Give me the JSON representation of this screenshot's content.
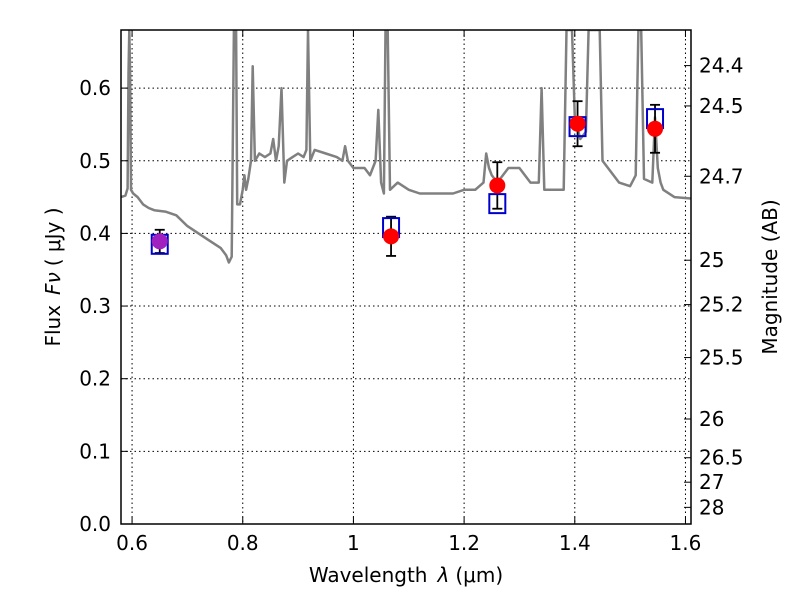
{
  "chart_data": {
    "type": "scatter",
    "title": "",
    "xlabel_text": "Wavelength",
    "xlabel_symbol": "λ",
    "xlabel_unit": "(μm)",
    "ylabel_text": "Flux",
    "ylabel_symbol": "Fν",
    "ylabel_unit": "( μJy )",
    "y2label": "Magnitude (AB)",
    "xlim": [
      0.58,
      1.61
    ],
    "ylim": [
      0.0,
      0.68
    ],
    "grid": true,
    "colors": {
      "model": "#808080",
      "observed": "#ff0000",
      "model_photometry": "#0000cc",
      "errorbar": "#000000",
      "overlap": "#a020c0"
    },
    "x_ticks": [
      "0.6",
      "0.8",
      "1",
      "1.2",
      "1.4",
      "1.6"
    ],
    "x_tick_values": [
      0.6,
      0.8,
      1.0,
      1.2,
      1.4,
      1.6
    ],
    "y_ticks": [
      "0.0",
      "0.1",
      "0.2",
      "0.3",
      "0.4",
      "0.5",
      "0.6"
    ],
    "y_tick_values": [
      0.0,
      0.1,
      0.2,
      0.3,
      0.4,
      0.5,
      0.6
    ],
    "y2_ticks": [
      {
        "label": "24.4",
        "mag": 24.4
      },
      {
        "label": "24.5",
        "mag": 24.5
      },
      {
        "label": "24.7",
        "mag": 24.7
      },
      {
        "label": "25",
        "mag": 25.0
      },
      {
        "label": "25.2",
        "mag": 25.2
      },
      {
        "label": "25.5",
        "mag": 25.5
      },
      {
        "label": "26",
        "mag": 26.0
      },
      {
        "label": "26.5",
        "mag": 26.5
      },
      {
        "label": "27",
        "mag": 27.0
      },
      {
        "label": "28",
        "mag": 28.0
      }
    ],
    "observed": [
      {
        "x": 0.65,
        "y": 0.389,
        "err": 0.016
      },
      {
        "x": 1.068,
        "y": 0.396,
        "err": 0.027
      },
      {
        "x": 1.26,
        "y": 0.466,
        "err": 0.032
      },
      {
        "x": 1.405,
        "y": 0.551,
        "err": 0.031
      },
      {
        "x": 1.545,
        "y": 0.544,
        "err": 0.033
      }
    ],
    "model_photometry": [
      {
        "x": 0.65,
        "y": 0.385
      },
      {
        "x": 1.068,
        "y": 0.408
      },
      {
        "x": 1.26,
        "y": 0.441
      },
      {
        "x": 1.405,
        "y": 0.547
      },
      {
        "x": 1.545,
        "y": 0.558
      }
    ],
    "model_spectrum": [
      [
        0.58,
        0.45
      ],
      [
        0.588,
        0.452
      ],
      [
        0.592,
        0.462
      ],
      [
        0.5935,
        0.62
      ],
      [
        0.595,
        0.68
      ],
      [
        0.5965,
        0.62
      ],
      [
        0.598,
        0.46
      ],
      [
        0.602,
        0.455
      ],
      [
        0.61,
        0.45
      ],
      [
        0.62,
        0.44
      ],
      [
        0.63,
        0.435
      ],
      [
        0.64,
        0.432
      ],
      [
        0.66,
        0.43
      ],
      [
        0.68,
        0.425
      ],
      [
        0.7,
        0.41
      ],
      [
        0.72,
        0.4
      ],
      [
        0.74,
        0.39
      ],
      [
        0.76,
        0.38
      ],
      [
        0.77,
        0.37
      ],
      [
        0.775,
        0.36
      ],
      [
        0.78,
        0.368
      ],
      [
        0.784,
        0.68
      ],
      [
        0.788,
        0.68
      ],
      [
        0.79,
        0.44
      ],
      [
        0.795,
        0.44
      ],
      [
        0.8,
        0.46
      ],
      [
        0.803,
        0.48
      ],
      [
        0.806,
        0.46
      ],
      [
        0.81,
        0.475
      ],
      [
        0.815,
        0.5
      ],
      [
        0.818,
        0.63
      ],
      [
        0.822,
        0.5
      ],
      [
        0.83,
        0.51
      ],
      [
        0.84,
        0.505
      ],
      [
        0.85,
        0.51
      ],
      [
        0.855,
        0.53
      ],
      [
        0.86,
        0.5
      ],
      [
        0.865,
        0.52
      ],
      [
        0.87,
        0.6
      ],
      [
        0.875,
        0.47
      ],
      [
        0.88,
        0.5
      ],
      [
        0.89,
        0.505
      ],
      [
        0.9,
        0.51
      ],
      [
        0.91,
        0.505
      ],
      [
        0.915,
        0.515
      ],
      [
        0.918,
        0.68
      ],
      [
        0.922,
        0.5
      ],
      [
        0.93,
        0.515
      ],
      [
        0.95,
        0.51
      ],
      [
        0.97,
        0.505
      ],
      [
        0.98,
        0.5
      ],
      [
        0.985,
        0.52
      ],
      [
        0.99,
        0.5
      ],
      [
        1.0,
        0.49
      ],
      [
        1.02,
        0.49
      ],
      [
        1.03,
        0.48
      ],
      [
        1.035,
        0.49
      ],
      [
        1.04,
        0.5
      ],
      [
        1.045,
        0.57
      ],
      [
        1.05,
        0.47
      ],
      [
        1.055,
        0.455
      ],
      [
        1.058,
        0.68
      ],
      [
        1.062,
        0.68
      ],
      [
        1.066,
        0.46
      ],
      [
        1.08,
        0.47
      ],
      [
        1.1,
        0.46
      ],
      [
        1.12,
        0.455
      ],
      [
        1.15,
        0.455
      ],
      [
        1.18,
        0.455
      ],
      [
        1.2,
        0.46
      ],
      [
        1.22,
        0.46
      ],
      [
        1.235,
        0.47
      ],
      [
        1.24,
        0.51
      ],
      [
        1.245,
        0.49
      ],
      [
        1.25,
        0.48
      ],
      [
        1.26,
        0.47
      ],
      [
        1.28,
        0.49
      ],
      [
        1.3,
        0.49
      ],
      [
        1.32,
        0.47
      ],
      [
        1.335,
        0.47
      ],
      [
        1.34,
        0.6
      ],
      [
        1.345,
        0.46
      ],
      [
        1.36,
        0.46
      ],
      [
        1.38,
        0.46
      ],
      [
        1.385,
        0.68
      ],
      [
        1.395,
        0.68
      ],
      [
        1.4,
        0.56
      ],
      [
        1.41,
        0.53
      ],
      [
        1.42,
        0.54
      ],
      [
        1.425,
        0.68
      ],
      [
        1.445,
        0.68
      ],
      [
        1.45,
        0.5
      ],
      [
        1.48,
        0.47
      ],
      [
        1.5,
        0.465
      ],
      [
        1.51,
        0.48
      ],
      [
        1.515,
        0.68
      ],
      [
        1.52,
        0.68
      ],
      [
        1.525,
        0.475
      ],
      [
        1.54,
        0.47
      ],
      [
        1.545,
        0.56
      ],
      [
        1.55,
        0.49
      ],
      [
        1.555,
        0.47
      ],
      [
        1.56,
        0.46
      ],
      [
        1.58,
        0.45
      ],
      [
        1.61,
        0.448
      ]
    ]
  }
}
